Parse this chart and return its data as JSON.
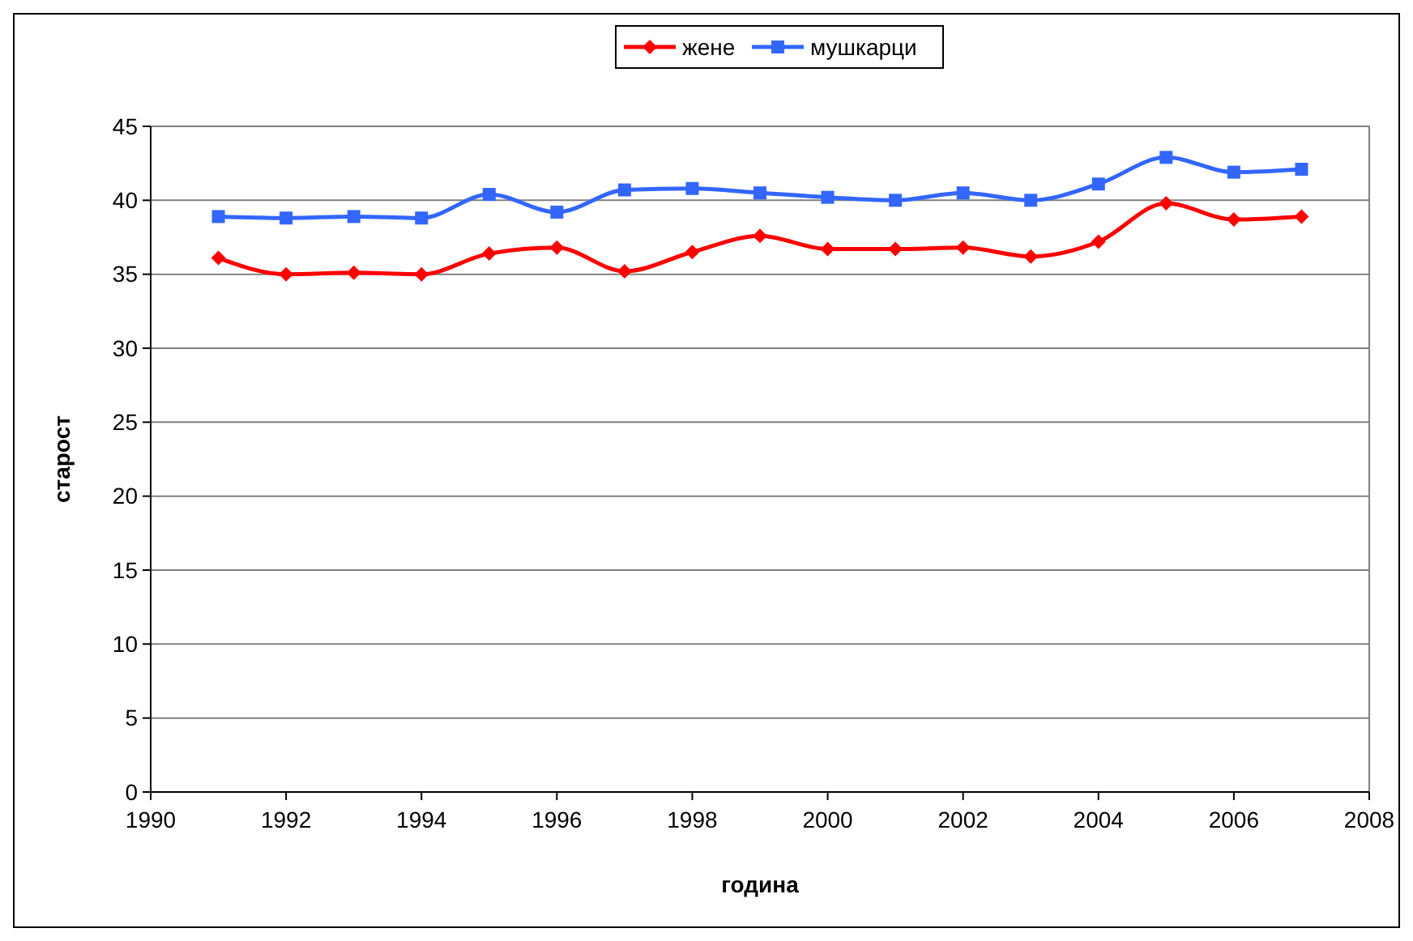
{
  "chart_data": {
    "type": "line",
    "xlabel": "година",
    "ylabel": "старост",
    "x": [
      1991,
      1992,
      1993,
      1994,
      1995,
      1996,
      1997,
      1998,
      1999,
      2000,
      2001,
      2002,
      2003,
      2004,
      2005,
      2006,
      2007
    ],
    "series": [
      {
        "name": "жене",
        "color": "#ff0000",
        "marker": "diamond",
        "values": [
          36.1,
          35.0,
          35.1,
          35.0,
          36.4,
          36.8,
          35.2,
          36.5,
          37.6,
          36.7,
          36.7,
          36.8,
          36.2,
          37.2,
          39.8,
          38.7,
          38.9
        ]
      },
      {
        "name": "мушкарци",
        "color": "#3366ff",
        "marker": "square",
        "values": [
          38.9,
          38.8,
          38.9,
          38.8,
          40.4,
          39.2,
          40.7,
          40.8,
          40.5,
          40.2,
          40.0,
          40.5,
          40.0,
          41.1,
          42.9,
          41.9,
          42.1
        ]
      }
    ],
    "xlim": [
      1990,
      2008
    ],
    "xticks": [
      1990,
      1992,
      1994,
      1996,
      1998,
      2000,
      2002,
      2004,
      2006,
      2008
    ],
    "ylim": [
      0,
      45
    ],
    "yticks": [
      0,
      5,
      10,
      15,
      20,
      25,
      30,
      35,
      40,
      45
    ],
    "grid": "y",
    "legend": "top",
    "line_style": "solid"
  }
}
